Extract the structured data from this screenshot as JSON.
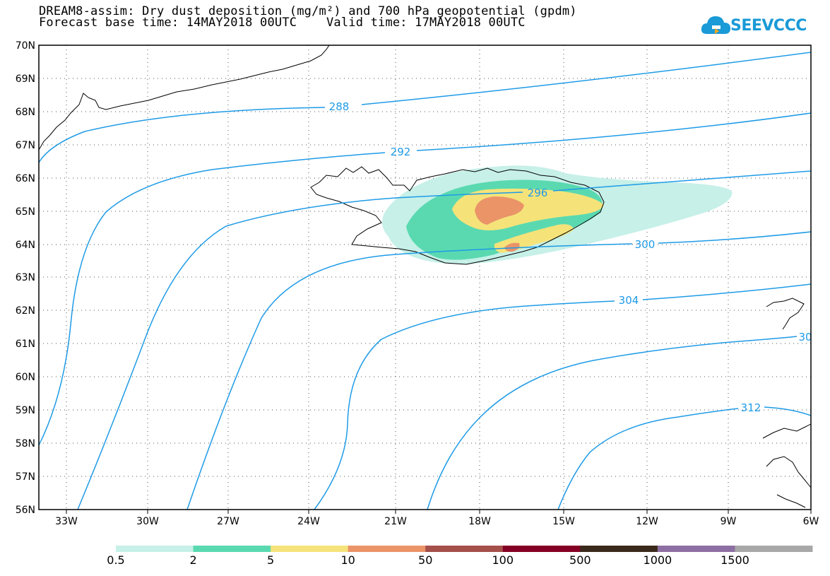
{
  "title_line1": "DREAM8-assim: Dry dust deposition (mg/m²) and 700 hPa geopotential (gpdm)",
  "title_line2": "Forecast base time: 14MAY2018 00UTC    Valid time: 17MAY2018 00UTC",
  "logo_text": "SEEVCCC",
  "map": {
    "lat_labels": [
      "70N",
      "69N",
      "68N",
      "67N",
      "66N",
      "65N",
      "64N",
      "63N",
      "62N",
      "61N",
      "60N",
      "59N",
      "58N",
      "57N",
      "56N"
    ],
    "lon_labels": [
      "33W",
      "30W",
      "27W",
      "24W",
      "21W",
      "18W",
      "15W",
      "12W",
      "9W",
      "6W"
    ],
    "lat_range": [
      56,
      70
    ],
    "lon_range": [
      -34.3,
      -6
    ],
    "grid": "dotted",
    "contour_labels": [
      "288",
      "292",
      "296",
      "300",
      "304",
      "30",
      "312"
    ],
    "contour_color": "#1e9be6"
  },
  "colorbar": {
    "labels": [
      "0.5",
      "2",
      "5",
      "10",
      "50",
      "100",
      "500",
      "1000",
      "1500"
    ],
    "colors": [
      "#c6f0e8",
      "#5ad9b0",
      "#f5e37a",
      "#ea9468",
      "#a5504a",
      "#850025",
      "#3a2a1c",
      "#8e6fa4",
      "#a8a8a8"
    ]
  }
}
